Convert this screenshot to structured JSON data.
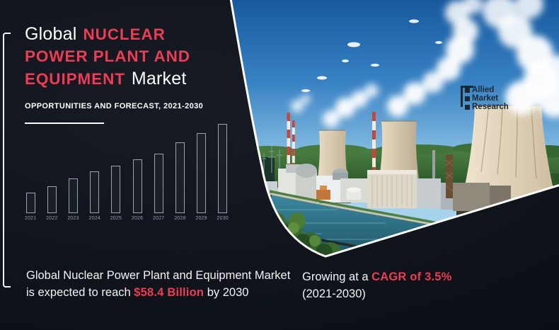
{
  "meta": {
    "accent_red": "#ed3c53",
    "bg_dark": "#10141b",
    "bar_outline": "#9aa3b3"
  },
  "header": {
    "title_white_1": "Global",
    "title_red_1": "NUCLEAR",
    "title_red_2": "POWER PLANT AND",
    "title_red_3": "EQUIPMENT",
    "title_white_2": "Market",
    "subtitle": "OPPORTUNITIES AND FORECAST, 2021-2030"
  },
  "chart_data": {
    "type": "bar",
    "categories": [
      "2021",
      "2022",
      "2023",
      "2024",
      "2025",
      "2026",
      "2027",
      "2028",
      "2029",
      "2030"
    ],
    "values": [
      23,
      30,
      39,
      47,
      53,
      60,
      67,
      79,
      90,
      100
    ],
    "title": "",
    "xlabel": "",
    "ylabel": "",
    "ylim": [
      0,
      100
    ],
    "grid": false,
    "legend": "none",
    "values_note": "decorative growth bars, no y-axis shown; heights relative with 2030 = 100",
    "style": {
      "bar_fill": "transparent",
      "bar_outline": "#9aa3b3",
      "label_color": "#939cac"
    }
  },
  "footer": {
    "left_line1": "Global Nuclear Power Plant and Equipment Market",
    "left_line2_prefix": "is expected to reach ",
    "left_line2_highlight": "$58.4 Billion",
    "left_line2_suffix": " by 2030",
    "right_prefix": "Growing at a ",
    "right_highlight": "CAGR of 3.5%",
    "right_line2": "(2021-2030)"
  },
  "logo": {
    "line1": "Allied",
    "line2": "Market",
    "line3": "Research"
  }
}
